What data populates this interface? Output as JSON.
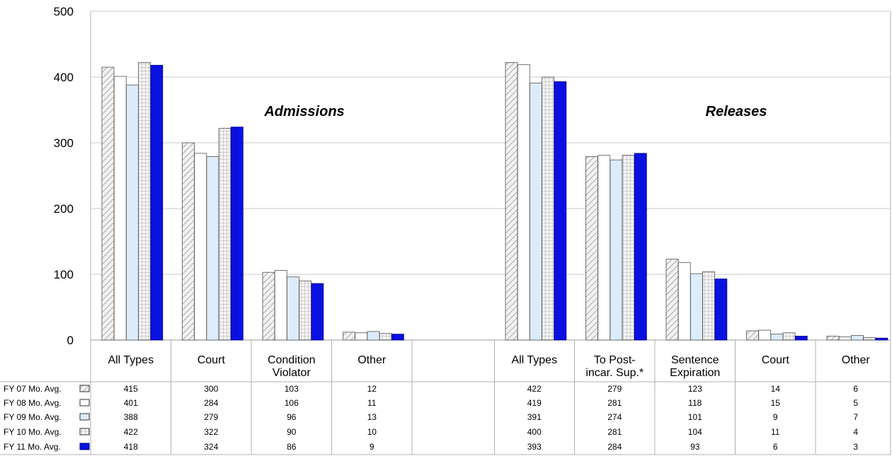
{
  "chart_data": {
    "type": "bar",
    "ylim": [
      0,
      500
    ],
    "yticks": [
      0,
      100,
      200,
      300,
      400,
      500
    ],
    "grid": true,
    "legend": "table-left",
    "series": [
      {
        "name": "FY 07 Mo. Avg.",
        "pattern": "diagonal-hatch",
        "color": "#c8c8c8"
      },
      {
        "name": "FY 08 Mo. Avg.",
        "pattern": "white",
        "color": "#ffffff"
      },
      {
        "name": "FY 09 Mo. Avg.",
        "pattern": "light-blue",
        "color": "#dcecfa"
      },
      {
        "name": "FY 10 Mo. Avg.",
        "pattern": "grid-hatch",
        "color": "#d0d0d0"
      },
      {
        "name": "FY 11 Mo. Avg.",
        "pattern": "solid-blue",
        "color": "#0a10e0"
      }
    ],
    "panels": [
      {
        "title": "Admissions",
        "categories": [
          {
            "label": [
              "All Types"
            ],
            "values": [
              415,
              401,
              388,
              422,
              418
            ]
          },
          {
            "label": [
              "Court"
            ],
            "values": [
              300,
              284,
              279,
              322,
              324
            ]
          },
          {
            "label": [
              "Condition",
              "Violator"
            ],
            "values": [
              103,
              106,
              96,
              90,
              86
            ]
          },
          {
            "label": [
              "Other"
            ],
            "values": [
              12,
              11,
              13,
              10,
              9
            ]
          }
        ]
      },
      {
        "title": "Releases",
        "categories": [
          {
            "label": [
              "All Types"
            ],
            "values": [
              422,
              419,
              391,
              400,
              393
            ]
          },
          {
            "label": [
              "To Post-",
              "incar. Sup.*"
            ],
            "values": [
              279,
              281,
              274,
              281,
              284
            ]
          },
          {
            "label": [
              "Sentence",
              "Expiration"
            ],
            "values": [
              123,
              118,
              101,
              104,
              93
            ]
          },
          {
            "label": [
              "Court"
            ],
            "values": [
              14,
              15,
              9,
              11,
              6
            ]
          },
          {
            "label": [
              "Other"
            ],
            "values": [
              6,
              5,
              7,
              4,
              3
            ]
          }
        ]
      }
    ]
  }
}
